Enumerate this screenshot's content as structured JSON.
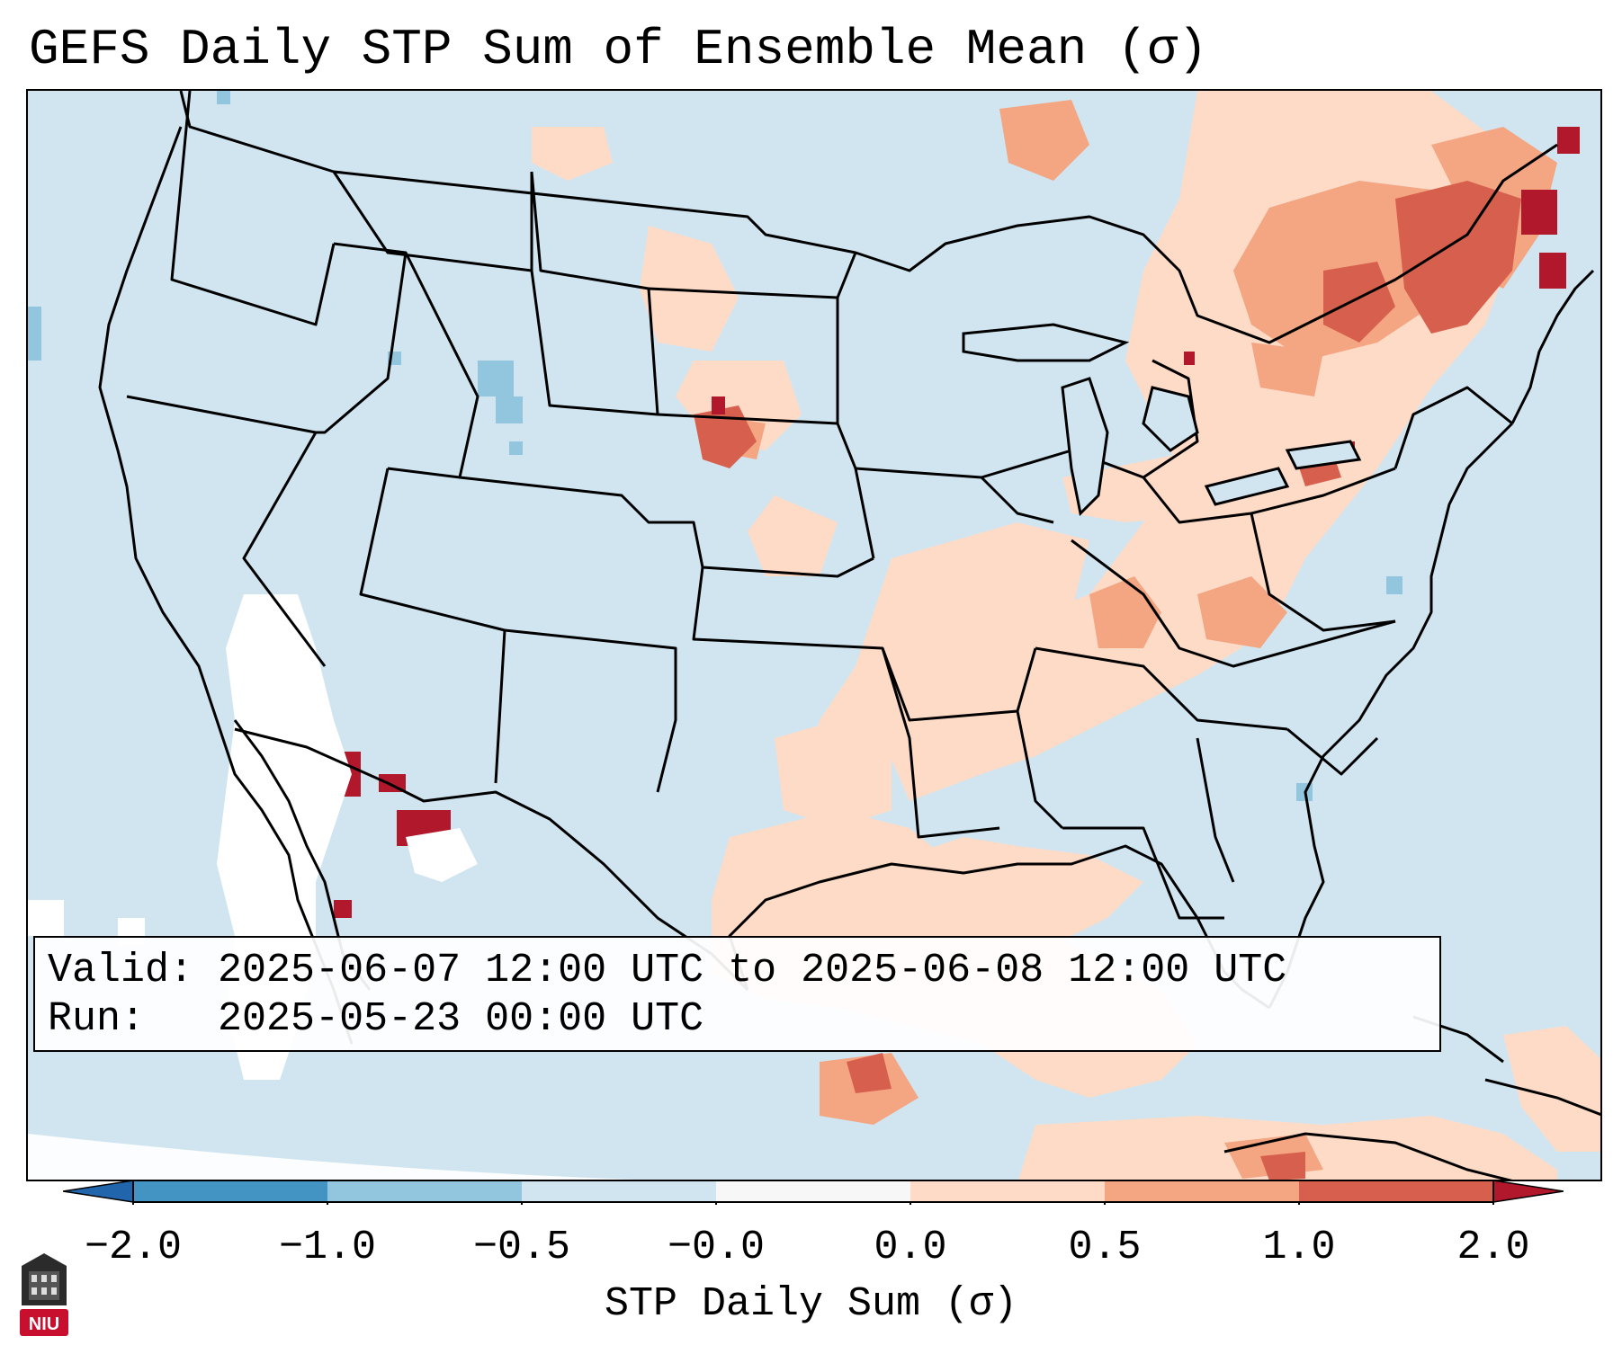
{
  "title": "GEFS Daily STP Sum of Ensemble Mean (σ)",
  "map": {
    "description": "Contiguous United States daily STP sum anomaly map",
    "colors": {
      "ocean_background": "#d1e5f0",
      "very_negative": "#4393c3",
      "negative": "#92c5de",
      "neutral_low": "#ffffff",
      "positive_low": "#fddbc7",
      "positive_mid": "#f4a582",
      "positive_high": "#d6604d",
      "very_positive": "#b2182b",
      "border": "#000000"
    }
  },
  "valid_box": {
    "valid_label": "Valid:",
    "valid_value": "2025-06-07 12:00 UTC to 2025-06-08 12:00 UTC",
    "run_label": "Run:",
    "run_value": "2025-05-23 00:00 UTC"
  },
  "colorbar": {
    "label": "STP Daily Sum (σ)",
    "ticks": [
      "−2.0",
      "−1.0",
      "−0.5",
      "−0.0",
      "0.0",
      "0.5",
      "1.0",
      "2.0"
    ],
    "segment_colors": [
      "#4393c3",
      "#92c5de",
      "#d1e5f0",
      "#f7f7f7",
      "#fddbc7",
      "#f4a582",
      "#d6604d"
    ],
    "extend_low_color": "#2166ac",
    "extend_high_color": "#b2182b"
  },
  "logo": {
    "text": "NIU",
    "icon": "university-seal-icon"
  }
}
